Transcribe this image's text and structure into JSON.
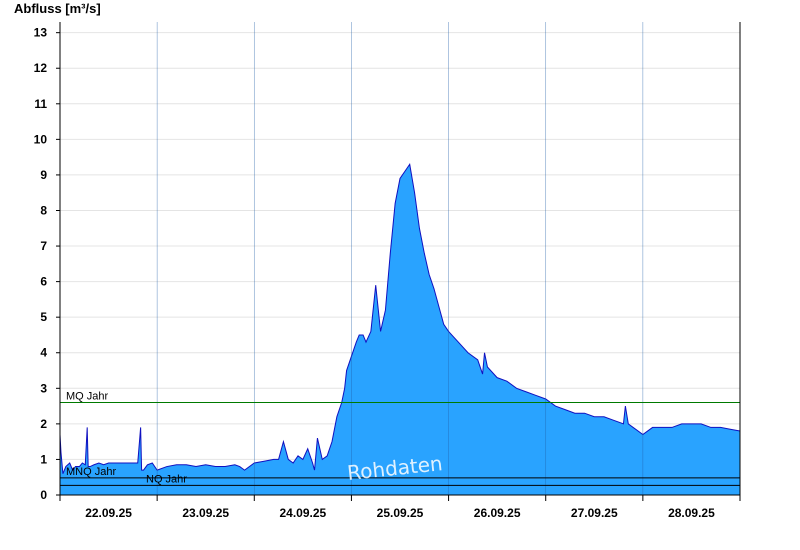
{
  "chart_data": {
    "type": "area",
    "title": "",
    "ylabel": "Abfluss [m³/s]",
    "xlabel": "",
    "ylim": [
      0,
      13.3
    ],
    "xlim": [
      0,
      7
    ],
    "yticks": [
      0,
      1,
      2,
      3,
      4,
      5,
      6,
      7,
      8,
      9,
      10,
      11,
      12,
      13
    ],
    "xtick_labels": [
      "22.09.25",
      "23.09.25",
      "24.09.25",
      "25.09.25",
      "26.09.25",
      "27.09.25",
      "28.09.25"
    ],
    "grid": "horizontal",
    "area_color": "#29a3ff",
    "line_color": "#1010c0",
    "series": [
      {
        "x": [
          0.0,
          0.01,
          0.03,
          0.06,
          0.1,
          0.13,
          0.16,
          0.2,
          0.23,
          0.26,
          0.28,
          0.29,
          0.31,
          0.35,
          0.4,
          0.45,
          0.5,
          0.6,
          0.7,
          0.8,
          0.83,
          0.84,
          0.86,
          0.9,
          0.95,
          1.0,
          1.1,
          1.2,
          1.3,
          1.4,
          1.5,
          1.6,
          1.7,
          1.8,
          1.85,
          1.9,
          2.0,
          2.1,
          2.2,
          2.25,
          2.3,
          2.35,
          2.4,
          2.45,
          2.5,
          2.55,
          2.6,
          2.62,
          2.65,
          2.7,
          2.75,
          2.8,
          2.85,
          2.9,
          2.93,
          2.95,
          3.0,
          3.05,
          3.08,
          3.1,
          3.12,
          3.15,
          3.2,
          3.25,
          3.3,
          3.35,
          3.4,
          3.45,
          3.5,
          3.55,
          3.6,
          3.65,
          3.7,
          3.75,
          3.8,
          3.85,
          3.9,
          3.95,
          4.0,
          4.1,
          4.2,
          4.3,
          4.35,
          4.37,
          4.4,
          4.5,
          4.6,
          4.7,
          4.8,
          4.9,
          5.0,
          5.1,
          5.2,
          5.3,
          5.4,
          5.5,
          5.6,
          5.7,
          5.8,
          5.82,
          5.85,
          5.9,
          6.0,
          6.1,
          6.2,
          6.3,
          6.4,
          6.5,
          6.6,
          6.7,
          6.8,
          6.9,
          7.0
        ],
        "y": [
          1.7,
          1.2,
          0.6,
          0.8,
          0.9,
          0.7,
          0.8,
          0.8,
          0.9,
          0.85,
          1.9,
          0.8,
          0.8,
          0.85,
          0.9,
          0.85,
          0.9,
          0.9,
          0.9,
          0.9,
          1.9,
          0.7,
          0.7,
          0.85,
          0.9,
          0.7,
          0.8,
          0.85,
          0.85,
          0.8,
          0.85,
          0.8,
          0.8,
          0.85,
          0.8,
          0.7,
          0.9,
          0.95,
          1.0,
          1.0,
          1.5,
          1.0,
          0.9,
          1.1,
          1.0,
          1.3,
          0.9,
          0.7,
          1.6,
          1.0,
          1.1,
          1.5,
          2.2,
          2.6,
          3.0,
          3.5,
          3.9,
          4.3,
          4.5,
          4.5,
          4.5,
          4.3,
          4.6,
          5.9,
          4.6,
          5.2,
          6.8,
          8.2,
          8.9,
          9.1,
          9.3,
          8.5,
          7.5,
          6.8,
          6.2,
          5.8,
          5.3,
          4.8,
          4.6,
          4.3,
          4.0,
          3.8,
          3.4,
          4.0,
          3.6,
          3.3,
          3.2,
          3.0,
          2.9,
          2.8,
          2.7,
          2.5,
          2.4,
          2.3,
          2.3,
          2.2,
          2.2,
          2.1,
          2.0,
          2.5,
          2.0,
          1.9,
          1.7,
          1.9,
          1.9,
          1.9,
          2.0,
          2.0,
          2.0,
          1.9,
          1.9,
          1.85,
          1.8
        ]
      }
    ],
    "reference_lines": [
      {
        "label": "MQ Jahr",
        "value": 2.6,
        "color": "#007a00"
      },
      {
        "label": "MNQ Jahr",
        "value": 0.48,
        "color": "#000000"
      },
      {
        "label": "NQ Jahr",
        "value": 0.27,
        "color": "#000000"
      }
    ],
    "watermark": "Rohdaten"
  }
}
